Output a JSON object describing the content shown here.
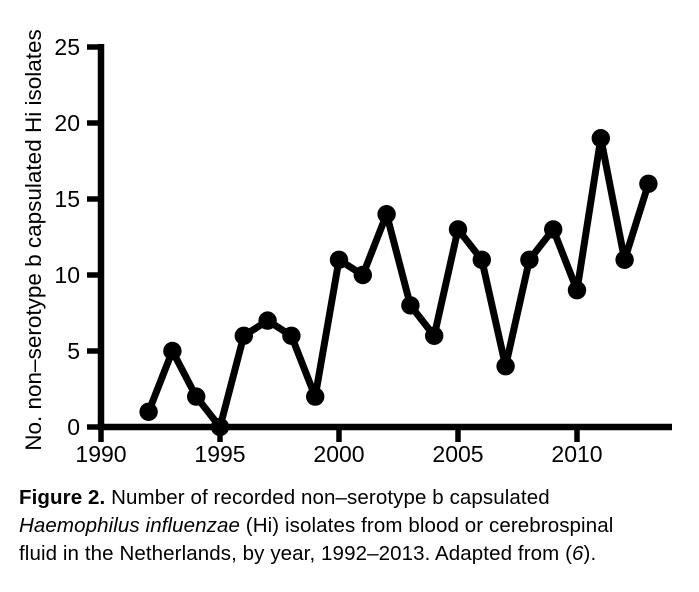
{
  "figure": {
    "caption_lines": [
      [
        {
          "t": "Figure 2.",
          "s": "bold"
        },
        {
          "t": " Number of recorded non–serotype b capsulated",
          "s": "normal"
        }
      ],
      [
        {
          "t": "Haemophilus influenzae",
          "s": "italic"
        },
        {
          "t": " (Hi) isolates from blood or cerebrospinal",
          "s": "normal"
        }
      ],
      [
        {
          "t": "fluid in the Netherlands, by year, 1992–2013. Adapted from (",
          "s": "normal"
        },
        {
          "t": "6",
          "s": "italic"
        },
        {
          "t": ").",
          "s": "normal"
        }
      ]
    ]
  },
  "chart_data": {
    "type": "line",
    "title": "",
    "xlabel": "",
    "ylabel": "No. non–serotype b capsulated Hi isolates",
    "x": [
      1992,
      1993,
      1994,
      1995,
      1996,
      1997,
      1998,
      1999,
      2000,
      2001,
      2002,
      2003,
      2004,
      2005,
      2006,
      2007,
      2008,
      2009,
      2010,
      2011,
      2012,
      2013
    ],
    "values": [
      1,
      5,
      2,
      0,
      6,
      7,
      6,
      2,
      11,
      10,
      14,
      8,
      6,
      13,
      11,
      4,
      11,
      13,
      9,
      19,
      11,
      16
    ],
    "x_ticks": [
      1990,
      1995,
      2000,
      2005,
      2010
    ],
    "y_ticks": [
      0,
      5,
      10,
      15,
      20,
      25
    ],
    "xlim": [
      1990,
      2014
    ],
    "ylim": [
      0,
      25
    ],
    "grid": false,
    "legend": false,
    "line_color": "#000000",
    "marker": "circle",
    "marker_color": "#000000"
  }
}
